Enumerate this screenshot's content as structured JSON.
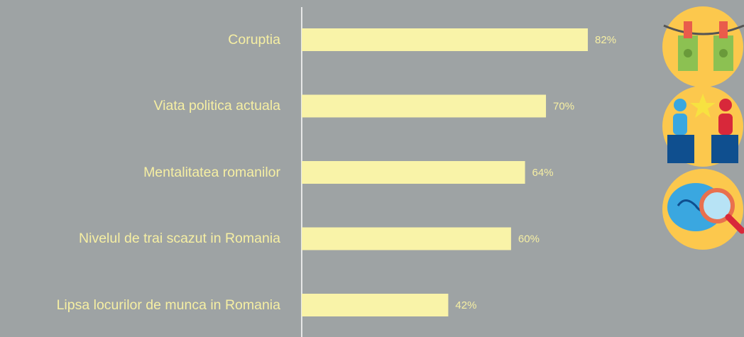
{
  "chart_data": {
    "type": "bar",
    "orientation": "horizontal",
    "categories": [
      "Coruptia",
      "Viata politica actuala",
      "Mentalitatea romanilor",
      "Nivelul de trai scazut in Romania",
      "Lipsa locurilor de munca in Romania"
    ],
    "values": [
      82,
      70,
      64,
      60,
      42
    ],
    "value_labels": [
      "82%",
      "70%",
      "64%",
      "60%",
      "42%"
    ],
    "color": "#f9f3a8",
    "xlim": [
      0,
      100
    ]
  }
}
